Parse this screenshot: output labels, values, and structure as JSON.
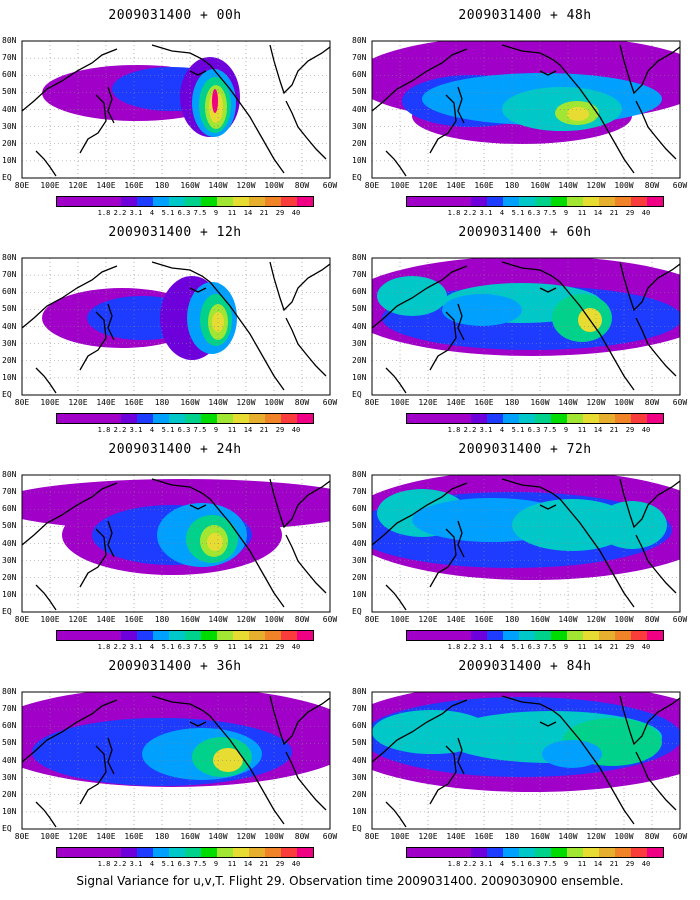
{
  "caption": "Signal Variance for u,v,T. Flight 29. Observation time 2009031400. 2009030900 ensemble.",
  "lat_labels": [
    "80N",
    "70N",
    "60N",
    "50N",
    "40N",
    "30N",
    "20N",
    "10N",
    "EQ"
  ],
  "lon_labels": [
    "80E",
    "100E",
    "120E",
    "140E",
    "160E",
    "180",
    "160W",
    "140W",
    "120W",
    "100W",
    "80W",
    "60W"
  ],
  "colorbar": {
    "labels": [
      "1.8",
      "2.2",
      "3.1",
      "4",
      "5.1",
      "6.3",
      "7.5",
      "9",
      "11",
      "14",
      "21",
      "29",
      "40"
    ],
    "colors": [
      "#a000c8",
      "#6e00dc",
      "#1e3cff",
      "#00a0ff",
      "#00c8c8",
      "#00d28c",
      "#00dc00",
      "#a0e632",
      "#e6dc32",
      "#e6af2d",
      "#f08228",
      "#fa3c3c",
      "#f00082"
    ]
  },
  "panels": [
    {
      "title": "2009031400 + 00h",
      "lead_hours": 0
    },
    {
      "title": "2009031400 + 48h",
      "lead_hours": 48
    },
    {
      "title": "2009031400 + 12h",
      "lead_hours": 12
    },
    {
      "title": "2009031400 + 60h",
      "lead_hours": 60
    },
    {
      "title": "2009031400 + 24h",
      "lead_hours": 24
    },
    {
      "title": "2009031400 + 72h",
      "lead_hours": 72
    },
    {
      "title": "2009031400 + 36h",
      "lead_hours": 36
    },
    {
      "title": "2009031400 + 84h",
      "lead_hours": 84
    }
  ]
}
